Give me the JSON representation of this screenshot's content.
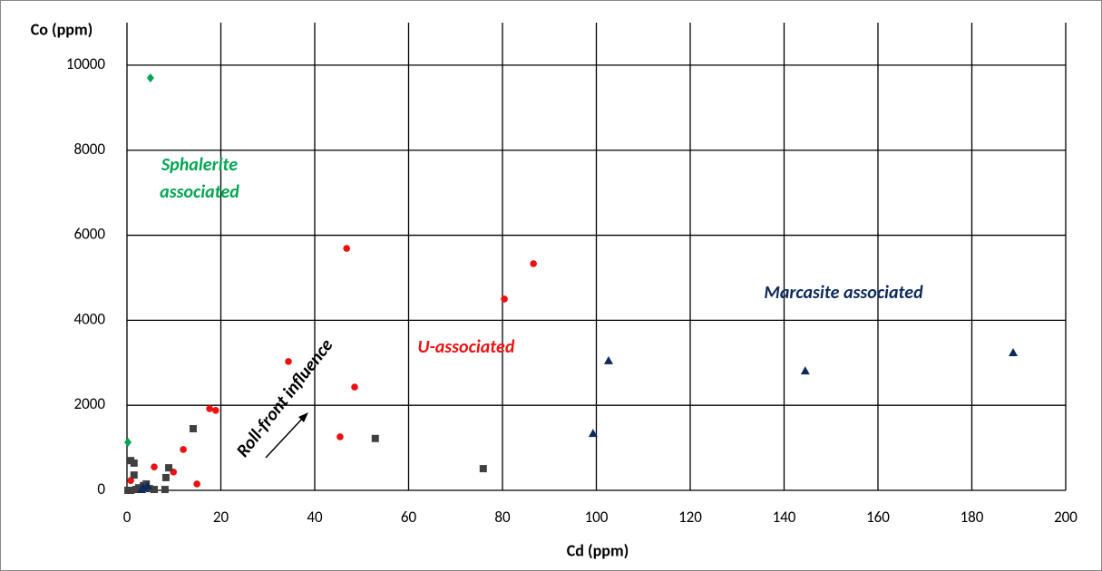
{
  "chart_data": {
    "type": "scatter",
    "x_label": "Cd (ppm)",
    "y_label": "Co (ppm)",
    "xlim": [
      0,
      200
    ],
    "xticks": [
      0,
      20,
      40,
      60,
      80,
      100,
      120,
      140,
      160,
      180,
      200
    ],
    "ylim": [
      0,
      11000
    ],
    "yticks": [
      0,
      2000,
      4000,
      6000,
      8000,
      10000
    ],
    "grid": true,
    "annotations": [
      [
        "Sphalerite",
        "associated"
      ],
      "U-associated",
      "Marcasite associated",
      "Roll-front influence"
    ],
    "series": [
      {
        "color": "#00a651",
        "marker": "diamond",
        "x": [
          5.0,
          0.2
        ],
        "values": [
          9700,
          1130
        ]
      },
      {
        "color": "#ee1111",
        "marker": "circle",
        "x": [
          46.8,
          86.6,
          80.4,
          34.4,
          48.5,
          45.4,
          17.6,
          18.9,
          12.0,
          9.9,
          5.8,
          14.9,
          0.8
        ],
        "values": [
          5690,
          5330,
          4500,
          3030,
          2430,
          1260,
          1920,
          1880,
          960,
          430,
          550,
          150,
          230
        ]
      },
      {
        "color": "#404040",
        "marker": "square",
        "x": [
          14.1,
          52.9,
          75.9,
          8.9,
          8.3,
          8.1,
          0.8,
          1.5,
          1.5,
          0.2,
          0.8,
          1.9,
          2.5,
          3.5,
          4.1,
          5.8,
          4.8
        ],
        "values": [
          1450,
          1220,
          510,
          530,
          300,
          20,
          700,
          640,
          360,
          0,
          0,
          20,
          60,
          110,
          150,
          20,
          40
        ]
      },
      {
        "color": "#0d2a5c",
        "marker": "triangle",
        "x": [
          102.6,
          99.3,
          144.5,
          188.8,
          3.5,
          4.4,
          3.1
        ],
        "values": [
          3050,
          1340,
          2810,
          3240,
          60,
          110,
          20
        ]
      }
    ]
  }
}
